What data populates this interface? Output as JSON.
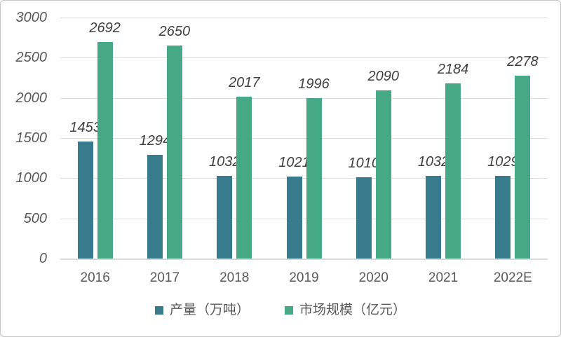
{
  "chart_data": {
    "type": "bar",
    "categories": [
      "2016",
      "2017",
      "2018",
      "2019",
      "2020",
      "2021",
      "2022E"
    ],
    "series": [
      {
        "id": "production",
        "name": "产量（万吨）",
        "color": "#377B8C",
        "values": [
          1453,
          1294,
          1032,
          1021,
          1010,
          1032,
          1029
        ]
      },
      {
        "id": "market-size",
        "name": "市场规模（亿元）",
        "color": "#45A985",
        "values": [
          2692,
          2650,
          2017,
          1996,
          2090,
          2184,
          2278
        ]
      }
    ],
    "y_ticks": [
      0,
      500,
      1000,
      1500,
      2000,
      2500,
      3000
    ],
    "ylim": [
      0,
      3000
    ],
    "grid": true,
    "data_labels": true,
    "legend_position": "bottom",
    "title": "",
    "xlabel": "",
    "ylabel": "",
    "colors": {
      "tick_label": "#595959",
      "data_label": "#404040",
      "gridline": "#DCDCDC",
      "axis_line": "#D9D9D9",
      "border": "#C6C6C6",
      "background": "#FFFFFF"
    }
  }
}
